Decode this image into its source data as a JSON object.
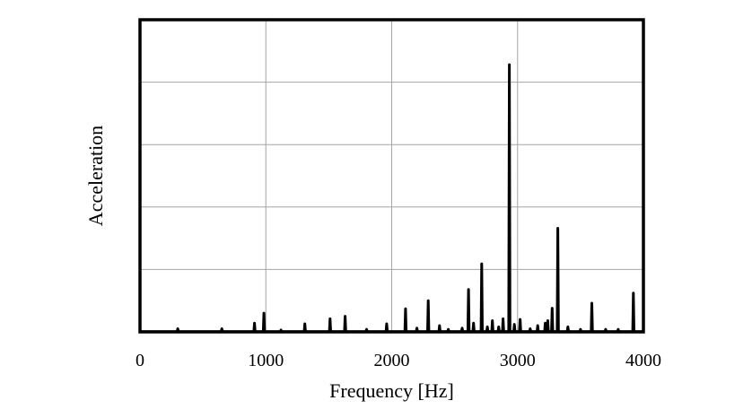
{
  "chart_data": {
    "type": "line",
    "title": "",
    "xlabel": "Frequency [Hz]",
    "ylabel": "Acceleration",
    "xlim": [
      0,
      4000
    ],
    "ylim": [
      0,
      5
    ],
    "xticks": [
      0,
      1000,
      2000,
      3000,
      4000
    ],
    "xtick_labels": [
      "0",
      "1000",
      "2000",
      "3000",
      "4000"
    ],
    "y_tick_labels_shown": false,
    "grid": true,
    "line_color": "#000000",
    "grid_color": "#a6a6a6",
    "series": [
      {
        "name": "",
        "peaks": [
          {
            "x": 300,
            "y": 0.05
          },
          {
            "x": 650,
            "y": 0.05
          },
          {
            "x": 910,
            "y": 0.14
          },
          {
            "x": 985,
            "y": 0.3
          },
          {
            "x": 1120,
            "y": 0.03
          },
          {
            "x": 1310,
            "y": 0.13
          },
          {
            "x": 1510,
            "y": 0.21
          },
          {
            "x": 1630,
            "y": 0.25
          },
          {
            "x": 1800,
            "y": 0.04
          },
          {
            "x": 1960,
            "y": 0.13
          },
          {
            "x": 2110,
            "y": 0.37
          },
          {
            "x": 2200,
            "y": 0.06
          },
          {
            "x": 2290,
            "y": 0.5
          },
          {
            "x": 2380,
            "y": 0.1
          },
          {
            "x": 2450,
            "y": 0.04
          },
          {
            "x": 2560,
            "y": 0.06
          },
          {
            "x": 2610,
            "y": 0.68
          },
          {
            "x": 2650,
            "y": 0.14
          },
          {
            "x": 2715,
            "y": 1.09
          },
          {
            "x": 2760,
            "y": 0.08
          },
          {
            "x": 2800,
            "y": 0.18
          },
          {
            "x": 2850,
            "y": 0.08
          },
          {
            "x": 2885,
            "y": 0.21
          },
          {
            "x": 2935,
            "y": 4.28
          },
          {
            "x": 2975,
            "y": 0.12
          },
          {
            "x": 3020,
            "y": 0.2
          },
          {
            "x": 3100,
            "y": 0.05
          },
          {
            "x": 3160,
            "y": 0.1
          },
          {
            "x": 3220,
            "y": 0.14
          },
          {
            "x": 3240,
            "y": 0.18
          },
          {
            "x": 3275,
            "y": 0.38
          },
          {
            "x": 3320,
            "y": 1.66
          },
          {
            "x": 3400,
            "y": 0.08
          },
          {
            "x": 3500,
            "y": 0.04
          },
          {
            "x": 3590,
            "y": 0.46
          },
          {
            "x": 3700,
            "y": 0.04
          },
          {
            "x": 3800,
            "y": 0.04
          },
          {
            "x": 3920,
            "y": 0.62
          }
        ]
      }
    ]
  }
}
